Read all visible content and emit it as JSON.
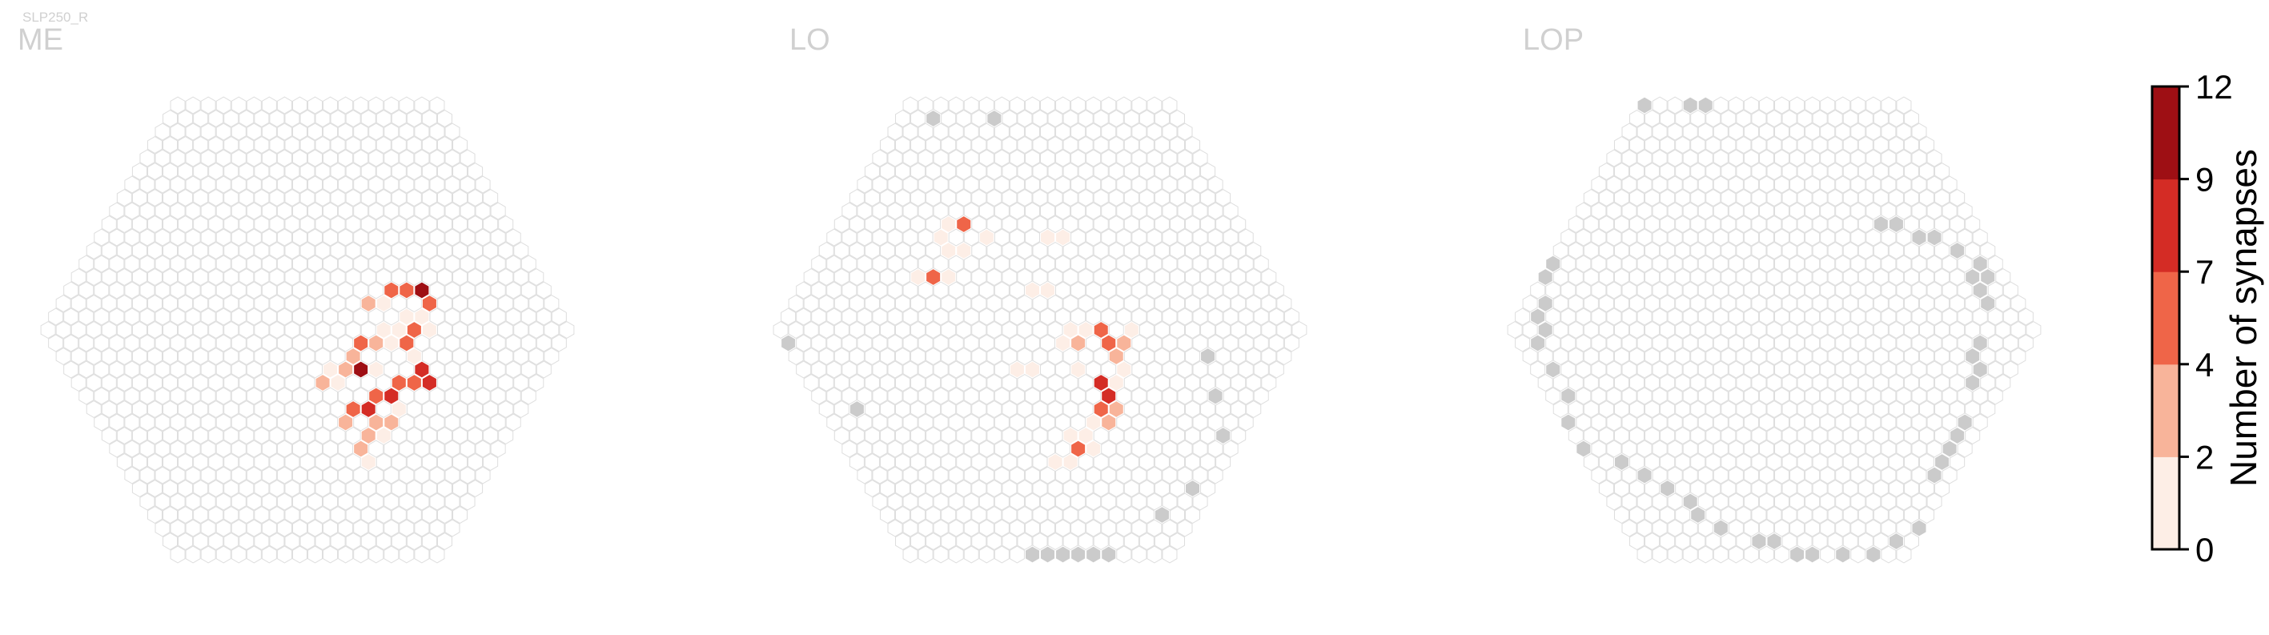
{
  "figure": {
    "cell_type_label": "SLP250_R"
  },
  "chart_data": [
    {
      "type": "heatmap",
      "title": "ME",
      "grid_radius": 17,
      "cells": [
        {
          "q": 7,
          "r": -3,
          "v": 5
        },
        {
          "q": 8,
          "r": -3,
          "v": 6
        },
        {
          "q": 9,
          "r": -3,
          "v": 12
        },
        {
          "q": 9,
          "r": -2,
          "v": 7
        },
        {
          "q": 5,
          "r": -2,
          "v": 3
        },
        {
          "q": 6,
          "r": -2,
          "v": 2
        },
        {
          "q": 7,
          "r": -1,
          "v": 2
        },
        {
          "q": 8,
          "r": -1,
          "v": 2
        },
        {
          "q": 8,
          "r": 0,
          "v": 2
        },
        {
          "q": 5,
          "r": 0,
          "v": 1
        },
        {
          "q": 6,
          "r": 0,
          "v": 2
        },
        {
          "q": 6,
          "r": 1,
          "v": 7
        },
        {
          "q": 7,
          "r": 0,
          "v": 5
        },
        {
          "q": 3,
          "r": 1,
          "v": 5
        },
        {
          "q": 4,
          "r": 1,
          "v": 4
        },
        {
          "q": 5,
          "r": 1,
          "v": 2
        },
        {
          "q": 6,
          "r": 2,
          "v": 1
        },
        {
          "q": 2,
          "r": 2,
          "v": 4
        },
        {
          "q": 0,
          "r": 3,
          "v": 1
        },
        {
          "q": 1,
          "r": 3,
          "v": 3
        },
        {
          "q": 2,
          "r": 3,
          "v": 12
        },
        {
          "q": 3,
          "r": 3,
          "v": 2
        },
        {
          "q": -1,
          "r": 4,
          "v": 3
        },
        {
          "q": 0,
          "r": 4,
          "v": 2
        },
        {
          "q": 6,
          "r": 3,
          "v": 9
        },
        {
          "q": 6,
          "r": 4,
          "v": 9
        },
        {
          "q": 5,
          "r": 4,
          "v": 5
        },
        {
          "q": 4,
          "r": 4,
          "v": 7
        },
        {
          "q": 3,
          "r": 5,
          "v": 9
        },
        {
          "q": 2,
          "r": 5,
          "v": 5
        },
        {
          "q": 1,
          "r": 6,
          "v": 9
        },
        {
          "q": 0,
          "r": 6,
          "v": 5
        },
        {
          "q": 3,
          "r": 6,
          "v": 2
        },
        {
          "q": 1,
          "r": 7,
          "v": 4
        },
        {
          "q": 2,
          "r": 7,
          "v": 4
        },
        {
          "q": 1,
          "r": 8,
          "v": 1
        },
        {
          "q": 0,
          "r": 8,
          "v": 3
        },
        {
          "q": -1,
          "r": 7,
          "v": 4
        },
        {
          "q": -1,
          "r": 9,
          "v": 3
        },
        {
          "q": -1,
          "r": 10,
          "v": 2
        }
      ],
      "missing_cells": []
    },
    {
      "type": "heatmap",
      "title": "LO",
      "grid_radius": 17,
      "cells": [
        {
          "q": -2,
          "r": -8,
          "v": 1
        },
        {
          "q": -1,
          "r": -8,
          "v": 6
        },
        {
          "q": -3,
          "r": -7,
          "v": 1
        },
        {
          "q": -3,
          "r": -6,
          "v": 1
        },
        {
          "q": 0,
          "r": -7,
          "v": 1
        },
        {
          "q": -2,
          "r": -6,
          "v": 1
        },
        {
          "q": 4,
          "r": -7,
          "v": 1
        },
        {
          "q": 5,
          "r": -7,
          "v": 1
        },
        {
          "q": -6,
          "r": -4,
          "v": 1
        },
        {
          "q": -5,
          "r": -4,
          "v": 7
        },
        {
          "q": -4,
          "r": -4,
          "v": 1
        },
        {
          "q": 1,
          "r": -3,
          "v": 1
        },
        {
          "q": 2,
          "r": -3,
          "v": 1
        },
        {
          "q": 2,
          "r": 0,
          "v": 1
        },
        {
          "q": 3,
          "r": 0,
          "v": 1
        },
        {
          "q": 1,
          "r": 1,
          "v": 1
        },
        {
          "q": 2,
          "r": 1,
          "v": 3
        },
        {
          "q": 4,
          "r": 0,
          "v": 6
        },
        {
          "q": 6,
          "r": 0,
          "v": 1
        },
        {
          "q": 4,
          "r": 1,
          "v": 7
        },
        {
          "q": 5,
          "r": 1,
          "v": 4
        },
        {
          "q": 4,
          "r": 2,
          "v": 3
        },
        {
          "q": -3,
          "r": 3,
          "v": 1
        },
        {
          "q": -2,
          "r": 3,
          "v": 1
        },
        {
          "q": 1,
          "r": 3,
          "v": 1
        },
        {
          "q": 4,
          "r": 3,
          "v": 2
        },
        {
          "q": 3,
          "r": 4,
          "v": 1
        },
        {
          "q": 2,
          "r": 5,
          "v": 9
        },
        {
          "q": 2,
          "r": 4,
          "v": 9
        },
        {
          "q": 1,
          "r": 6,
          "v": 6
        },
        {
          "q": 1,
          "r": 7,
          "v": 3
        },
        {
          "q": 2,
          "r": 6,
          "v": 3
        },
        {
          "q": 0,
          "r": 7,
          "v": 1
        },
        {
          "q": -1,
          "r": 8,
          "v": 1
        },
        {
          "q": -2,
          "r": 8,
          "v": 1
        },
        {
          "q": -2,
          "r": 9,
          "v": 5
        },
        {
          "q": -1,
          "r": 9,
          "v": 1
        },
        {
          "q": -4,
          "r": 10,
          "v": 2
        },
        {
          "q": -3,
          "r": 10,
          "v": 1
        }
      ],
      "missing_cells": [
        {
          "q": 1,
          "r": -16
        },
        {
          "q": 5,
          "r": -16
        },
        {
          "q": -8,
          "r": -11
        },
        {
          "q": -9,
          "r": -10
        },
        {
          "q": -14,
          "r": -4
        },
        {
          "q": -17,
          "r": 1
        },
        {
          "q": -15,
          "r": 6
        },
        {
          "q": 10,
          "r": 2
        },
        {
          "q": 9,
          "r": 5
        },
        {
          "q": 8,
          "r": 8
        },
        {
          "q": 4,
          "r": 12
        },
        {
          "q": 1,
          "r": 14
        },
        {
          "q": -9,
          "r": 17
        },
        {
          "q": -8,
          "r": 17
        },
        {
          "q": -7,
          "r": 17
        },
        {
          "q": -6,
          "r": 17
        },
        {
          "q": -5,
          "r": 17
        },
        {
          "q": -4,
          "r": 17
        }
      ]
    },
    {
      "type": "heatmap",
      "title": "LOP",
      "grid_radius": 17,
      "cells": [],
      "missing_cells": [
        {
          "q": -3,
          "r": -15
        },
        {
          "q": -2,
          "r": -16
        },
        {
          "q": 0,
          "r": -17
        },
        {
          "q": 3,
          "r": -17
        },
        {
          "q": 4,
          "r": -17
        },
        {
          "q": -5,
          "r": -13
        },
        {
          "q": -6,
          "r": -12
        },
        {
          "q": -7,
          "r": -11
        },
        {
          "q": -8,
          "r": -10
        },
        {
          "q": -9,
          "r": -9
        },
        {
          "q": -8,
          "r": -11
        },
        {
          "q": -9,
          "r": -10
        },
        {
          "q": -10,
          "r": -8
        },
        {
          "q": -11,
          "r": -7
        },
        {
          "q": -12,
          "r": -5
        },
        {
          "q": -13,
          "r": -4
        },
        {
          "q": -14,
          "r": -2
        },
        {
          "q": -15,
          "r": -1
        },
        {
          "q": -15,
          "r": 0
        },
        {
          "q": -16,
          "r": 1
        },
        {
          "q": -16,
          "r": 3
        },
        {
          "q": -16,
          "r": 5
        },
        {
          "q": -17,
          "r": 7
        },
        {
          "q": -17,
          "r": 9
        },
        {
          "q": -15,
          "r": 10
        },
        {
          "q": -14,
          "r": 11
        },
        {
          "q": -13,
          "r": 12
        },
        {
          "q": -12,
          "r": 13
        },
        {
          "q": -12,
          "r": 14
        },
        {
          "q": -11,
          "r": 15
        },
        {
          "q": -9,
          "r": 16
        },
        {
          "q": -8,
          "r": 16
        },
        {
          "q": -7,
          "r": 17
        },
        {
          "q": -6,
          "r": 17
        },
        {
          "q": -4,
          "r": 17
        },
        {
          "q": -2,
          "r": 17
        },
        {
          "q": 0,
          "r": 16
        },
        {
          "q": 2,
          "r": 15
        },
        {
          "q": 5,
          "r": 11
        },
        {
          "q": 6,
          "r": 10
        },
        {
          "q": 7,
          "r": 9
        },
        {
          "q": 8,
          "r": 8
        },
        {
          "q": 9,
          "r": 7
        },
        {
          "q": 11,
          "r": 4
        },
        {
          "q": 12,
          "r": 3
        },
        {
          "q": 12,
          "r": 2
        },
        {
          "q": 13,
          "r": 1
        },
        {
          "q": 15,
          "r": -4
        },
        {
          "q": 15,
          "r": -3
        },
        {
          "q": 15,
          "r": -2
        },
        {
          "q": 16,
          "r": -4
        },
        {
          "q": 16,
          "r": -5
        },
        {
          "q": 15,
          "r": -6
        },
        {
          "q": 14,
          "r": -7
        },
        {
          "q": 13,
          "r": -7
        },
        {
          "q": 12,
          "r": -8
        },
        {
          "q": 11,
          "r": -8
        }
      ]
    }
  ],
  "colorbar": {
    "label": "Number of synapses",
    "ticks": [
      "0",
      "2",
      "4",
      "7",
      "9",
      "12"
    ],
    "bin_edges": [
      0,
      2,
      4,
      7,
      9,
      12
    ],
    "colors": [
      "#fdeee6",
      "#f8b49a",
      "#ef6548",
      "#d42c25",
      "#9e0f14"
    ]
  },
  "colors": {
    "empty_cell_stroke": "#dedede",
    "missing_cell_fill": "#cbcbcb",
    "title_text": "#cfcfcf"
  }
}
